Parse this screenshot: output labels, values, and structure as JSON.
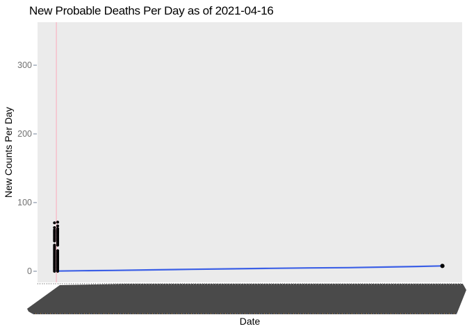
{
  "chart_data": {
    "type": "scatter+line",
    "title": "New Probable Deaths Per Day as of 2021-04-16",
    "xlabel": "Date",
    "ylabel": "New Counts Per Day",
    "as_of_date": "2021-04-16",
    "y_ticks": [
      0,
      100,
      200,
      300
    ],
    "y_tick_labels": [
      "0",
      "100",
      "200",
      "300"
    ],
    "ylim": [
      -17,
      364
    ],
    "x_domain_days": [
      0,
      396
    ],
    "x_tick_labels": "hundreds of daily date labels rotated and overlapping into a solid dark band, unreadable",
    "grid": false,
    "legend": false,
    "panel_color": "#EBEBEB",
    "vline": {
      "x_day": 2.5,
      "color": "#F8B9C6"
    },
    "scatter_color": "#000000",
    "point_radius": 2.1,
    "point_columns": [
      {
        "x_day": 0.6,
        "values": [
          0,
          2,
          4,
          6,
          8,
          10,
          12,
          14,
          16,
          18,
          20,
          22,
          24,
          26,
          28,
          30,
          32,
          34,
          36,
          38,
          44,
          46,
          48,
          50,
          52,
          54,
          56,
          58,
          60,
          63.5,
          70.5
        ]
      },
      {
        "x_day": 3.8,
        "values": [
          0,
          2,
          4,
          6,
          8,
          10,
          12,
          14,
          16,
          18,
          20,
          22,
          24,
          26,
          28,
          30,
          38,
          40,
          42,
          44,
          46,
          48,
          50,
          52,
          54,
          56,
          58,
          60,
          62,
          66,
          71.5
        ]
      }
    ],
    "line_series": {
      "name": "new-probable-deaths-per-day",
      "color": "#3B5FE6",
      "width": 2.2,
      "points": [
        [
          3,
          0.3
        ],
        [
          30,
          0.8
        ],
        [
          60,
          1.2
        ],
        [
          100,
          2
        ],
        [
          140,
          2.8
        ],
        [
          180,
          3.5
        ],
        [
          220,
          4.2
        ],
        [
          260,
          4.8
        ],
        [
          300,
          5.3
        ],
        [
          340,
          6.2
        ],
        [
          370,
          7
        ],
        [
          396,
          7.8
        ]
      ]
    },
    "end_point": {
      "x_day": 396,
      "value": 7.8,
      "radius": 3.1,
      "color": "#000000"
    }
  }
}
